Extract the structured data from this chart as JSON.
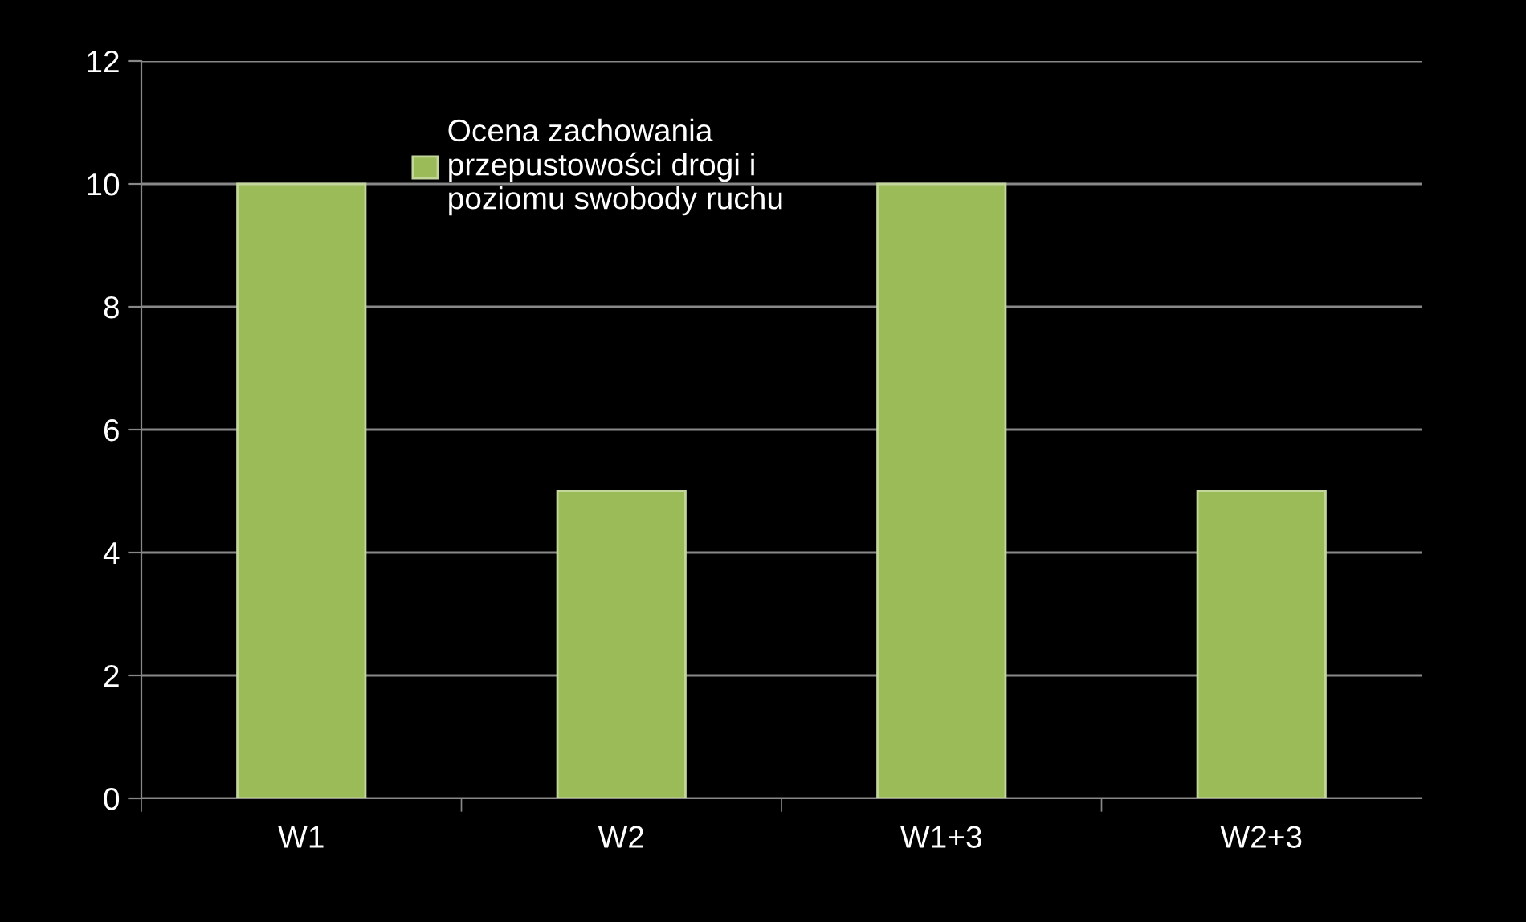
{
  "chart_data": {
    "type": "bar",
    "categories": [
      "W1",
      "W2",
      "W1+3",
      "W2+3"
    ],
    "series": [
      {
        "name": "Ocena zachowania\nprzepustowości drogi i\npoziomu swobody ruchu",
        "color": "#9bbb59",
        "values": [
          10,
          5,
          10,
          5
        ]
      }
    ],
    "ylim": [
      0,
      12
    ],
    "yticks": [
      0,
      2,
      4,
      6,
      8,
      10,
      12
    ],
    "grid": "y",
    "legend": "top left"
  }
}
